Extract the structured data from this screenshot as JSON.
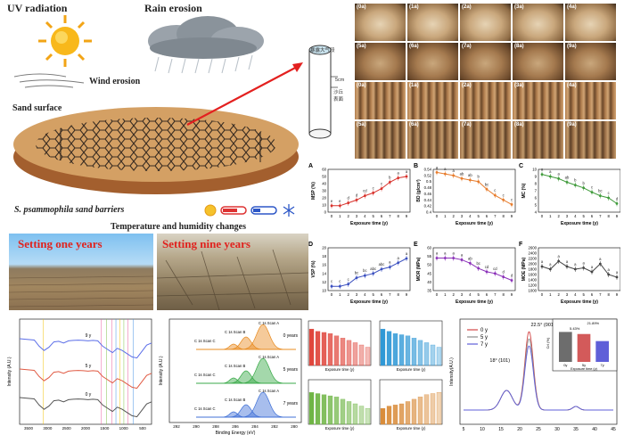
{
  "scene": {
    "uv_label": "UV radiation",
    "rain_label": "Rain erosion",
    "wind_label": "Wind erosion",
    "sand_label": "Sand surface",
    "barrier_label": "S. psammophila sand barriers",
    "temp_label": "Temperature and humidity changes",
    "cylinder_top": "暴露大气段",
    "cylinder_depth": "5cm",
    "cylinder_bottom": "沙丘\n表面"
  },
  "photos": {
    "setting1": "Setting one years",
    "setting9": "Setting nine years"
  },
  "tiles": {
    "row1": [
      "(0a)",
      "(1a)",
      "(2a)",
      "(3a)",
      "(4a)"
    ],
    "row2": [
      "(5a)",
      "(6a)",
      "(7a)",
      "(8a)",
      "(9a)"
    ],
    "row3": [
      "(0a)",
      "(1a)",
      "(2a)",
      "(3a)",
      "(4a)"
    ],
    "row4": [
      "(5a)",
      "(6a)",
      "(7a)",
      "(8a)",
      "(9a)"
    ]
  },
  "chart_data": [
    {
      "id": "A",
      "type": "line",
      "ylabel": "MSP (%)",
      "xlabel": "Exposure time (y)",
      "x": [
        0,
        1,
        2,
        3,
        4,
        5,
        6,
        7,
        8,
        9
      ],
      "ylim": [
        0,
        60
      ],
      "yticks": [
        0,
        10,
        20,
        30,
        40,
        50,
        60
      ],
      "values": [
        9,
        9,
        13,
        17,
        23,
        27,
        33,
        42,
        48,
        50
      ],
      "letters": [
        "e",
        "e",
        "d",
        "d",
        "cd",
        "c",
        "c",
        "b",
        "a",
        "a"
      ],
      "color": "#d8302a"
    },
    {
      "id": "B",
      "type": "line",
      "ylabel": "BD (g/cm³)",
      "xlabel": "Exposure time (y)",
      "x": [
        0,
        1,
        2,
        3,
        4,
        5,
        6,
        7,
        8,
        9
      ],
      "ylim": [
        0.4,
        0.54
      ],
      "yticks": [
        0.4,
        0.42,
        0.44,
        0.46,
        0.48,
        0.5,
        0.52,
        0.54
      ],
      "values": [
        0.53,
        0.525,
        0.52,
        0.51,
        0.505,
        0.5,
        0.475,
        0.455,
        0.44,
        0.425
      ],
      "letters": [
        "a",
        "a",
        "a",
        "ab",
        "ab",
        "b",
        "bc",
        "c",
        "c",
        "c"
      ],
      "color": "#e77c2c"
    },
    {
      "id": "C",
      "type": "line",
      "ylabel": "MC (%)",
      "xlabel": "Exposure time (y)",
      "x": [
        0,
        1,
        2,
        3,
        4,
        5,
        6,
        7,
        8,
        9
      ],
      "ylim": [
        4,
        10
      ],
      "yticks": [
        4,
        5,
        6,
        7,
        8,
        9,
        10
      ],
      "values": [
        9.3,
        9.0,
        8.7,
        8.2,
        7.8,
        7.4,
        6.8,
        6.3,
        6.0,
        5.2
      ],
      "letters": [
        "a",
        "a",
        "a",
        "ab",
        "b",
        "b",
        "c",
        "bc",
        "c",
        "d"
      ],
      "color": "#3f9a3a"
    },
    {
      "id": "D",
      "type": "line",
      "ylabel": "VSP (%)",
      "xlabel": "Exposure time (y)",
      "x": [
        0,
        1,
        2,
        3,
        4,
        5,
        6,
        7,
        8,
        9
      ],
      "ylim": [
        10,
        20
      ],
      "yticks": [
        10,
        12,
        14,
        16,
        18,
        20
      ],
      "values": [
        11,
        11,
        11.5,
        13,
        13.5,
        14,
        15,
        15.5,
        16.5,
        17.5
      ],
      "letters": [
        "c",
        "c",
        "c",
        "bc",
        "bc",
        "abc",
        "abc",
        "a",
        "a",
        "a"
      ],
      "color": "#3a4fbf"
    },
    {
      "id": "E",
      "type": "line",
      "ylabel": "MOR (MPa)",
      "xlabel": "Exposure time (y)",
      "x": [
        0,
        1,
        2,
        3,
        4,
        5,
        6,
        7,
        8,
        9
      ],
      "ylim": [
        35,
        60
      ],
      "yticks": [
        35,
        40,
        45,
        50,
        55,
        60
      ],
      "values": [
        54,
        54,
        54,
        53,
        51,
        48,
        46,
        45,
        43,
        41
      ],
      "letters": [
        "a",
        "a",
        "a",
        "a",
        "ab",
        "bc",
        "cd",
        "cd",
        "d",
        "d"
      ],
      "color": "#8a2fb8"
    },
    {
      "id": "F",
      "type": "line",
      "ylabel": "MOE (MPa)",
      "xlabel": "Exposure time (y)",
      "x": [
        0,
        1,
        2,
        3,
        4,
        5,
        6,
        7,
        8,
        9
      ],
      "ylim": [
        1000,
        2600
      ],
      "yticks": [
        1000,
        1200,
        1400,
        1600,
        1800,
        2000,
        2200,
        2400,
        2600
      ],
      "values": [
        1900,
        1800,
        2100,
        1900,
        1800,
        1850,
        1700,
        2000,
        1600,
        1500
      ],
      "letters": [
        "a",
        "a",
        "a",
        "a",
        "a",
        "a",
        "a",
        "a",
        "a",
        "a"
      ],
      "color": "#444444"
    }
  ],
  "ftir": {
    "labels": [
      "9 y",
      "5 y",
      "0 y"
    ],
    "colors": [
      "#5b6ee8",
      "#e05a43",
      "#555555"
    ],
    "ylabel": "Intensity (A.U.)",
    "xticks": [
      "3500",
      "3000",
      "2500",
      "2000",
      "1500",
      "1000",
      "500"
    ]
  },
  "xps": {
    "ylabel": "Intensity (A.U.)",
    "xlabel": "Binding Energy (eV)",
    "xticks": [
      "292",
      "290",
      "288",
      "286",
      "284",
      "282",
      "280"
    ],
    "groups": [
      {
        "label": "0 years",
        "color": "#e88a1e",
        "scanA": "C 1s Scan A",
        "scanB": "C 1s Scan B",
        "scanC": "C 1s Scan C"
      },
      {
        "label": "5 years",
        "color": "#36a845",
        "scanA": "C 1s Scan A",
        "scanB": "C 1s Scan B",
        "scanC": "C 1s Scan C"
      },
      {
        "label": "7 years",
        "color": "#3e6fd6",
        "scanA": "C 1s Scan A",
        "scanB": "C 1s Scan B",
        "scanC": "C 1s Scan C"
      }
    ]
  },
  "bars": {
    "xlabel": "Exposure time (y)",
    "panels": [
      {
        "color": "#e0463c",
        "values": [
          16,
          15,
          14.5,
          14,
          13,
          12,
          11,
          10,
          9,
          8
        ]
      },
      {
        "color": "#2f98d6",
        "values": [
          16,
          15,
          14,
          13.5,
          13,
          12,
          11,
          10,
          9,
          8
        ]
      },
      {
        "color": "#6fb545",
        "values": [
          14,
          13.5,
          13,
          12.5,
          12,
          11,
          10,
          9,
          8,
          7
        ]
      },
      {
        "color": "#d98c3a",
        "values": [
          7,
          8,
          8.5,
          9,
          10,
          11,
          12,
          13,
          13.5,
          14
        ]
      }
    ]
  },
  "xrd": {
    "ylabel": "Intensity(A.U.)",
    "xticks": [
      "5",
      "10",
      "15",
      "20",
      "25",
      "30",
      "35",
      "40",
      "45"
    ],
    "peak1": "22.5° (001)",
    "peak2": "18° (101)",
    "legend": [
      "0 y",
      "5 y",
      "7 y"
    ],
    "colors": [
      "#d24545",
      "#8c8c8c",
      "#5f5fd8"
    ],
    "inset": {
      "ylabel": "CrI (%)",
      "xlabel": "Exposure time (y)",
      "categories": [
        "0y",
        "5y",
        "7y"
      ],
      "values": [
        72,
        67,
        50
      ],
      "pcts": [
        "5.43%",
        "21.89%"
      ],
      "colors": [
        "#6d6d6d",
        "#d35a5a",
        "#5f5fd8"
      ]
    }
  }
}
